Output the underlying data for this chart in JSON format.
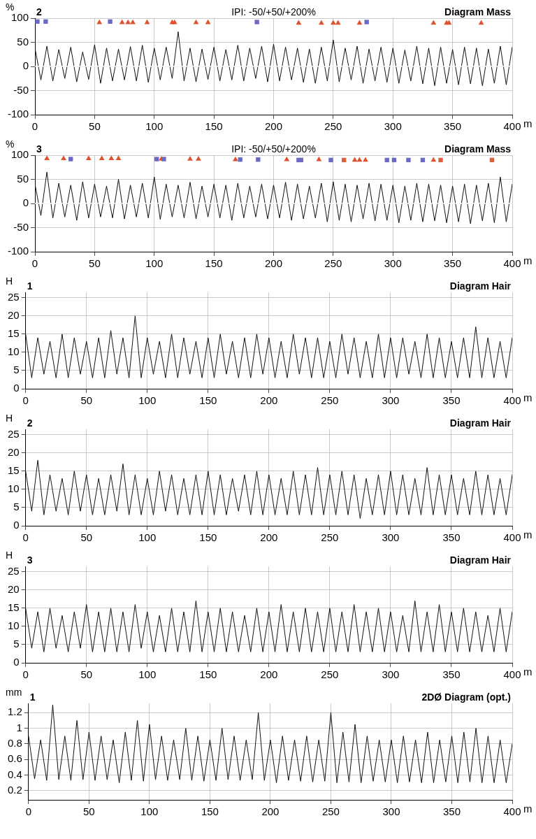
{
  "chart_data": [
    {
      "type": "line",
      "title": "Diagram Mass",
      "ylabel": "%",
      "xlabel": "m",
      "annotations": [
        "2",
        "IPI: -50/+50/+200%"
      ],
      "marker": "none",
      "grid": true,
      "x": [
        0,
        5,
        10,
        15,
        20,
        25,
        30,
        35,
        40,
        45,
        50,
        55,
        60,
        65,
        70,
        75,
        80,
        85,
        90,
        95,
        100,
        105,
        110,
        115,
        120,
        125,
        130,
        135,
        140,
        145,
        150,
        155,
        160,
        165,
        170,
        175,
        180,
        185,
        190,
        195,
        200,
        205,
        210,
        215,
        220,
        225,
        230,
        235,
        240,
        245,
        250,
        255,
        260,
        265,
        270,
        275,
        280,
        285,
        290,
        295,
        300,
        305,
        310,
        315,
        320,
        325,
        330,
        335,
        340,
        345,
        350,
        355,
        360,
        365,
        370,
        375,
        380,
        385,
        390,
        395,
        400
      ],
      "xlim": [
        0,
        400
      ],
      "xticks": [
        0,
        50,
        100,
        150,
        200,
        250,
        300,
        350,
        400
      ],
      "ylim": [
        -100,
        100
      ],
      "yticks": [
        -100,
        -50,
        0,
        50,
        100
      ],
      "ref_lines": [
        {
          "axis": "y",
          "value": 0,
          "color": "#ffffff"
        }
      ],
      "series": [
        {
          "type": "line",
          "color": "#111111",
          "values": [
            38,
            -28,
            42,
            -30,
            35,
            -25,
            40,
            -32,
            30,
            -27,
            45,
            -35,
            38,
            -30,
            36,
            -28,
            41,
            -30,
            44,
            -33,
            38,
            -28,
            40,
            -25,
            72,
            -30,
            38,
            -32,
            36,
            -27,
            40,
            -30,
            35,
            -28,
            44,
            -30,
            38,
            -25,
            42,
            -32,
            46,
            -30,
            40,
            -28,
            38,
            -33,
            36,
            -35,
            40,
            -30,
            55,
            -32,
            38,
            -28,
            42,
            -35,
            36,
            -30,
            40,
            -33,
            38,
            -35,
            34,
            -30,
            42,
            -36,
            38,
            -40,
            40,
            -35,
            35,
            -38,
            40,
            -36,
            38,
            -40,
            36,
            -35,
            42,
            -38,
            40
          ]
        },
        {
          "type": "scatter",
          "marker": "square",
          "color": "#6a6ac4",
          "x": [
            2,
            9,
            63,
            186,
            278
          ],
          "values": [
            93,
            93,
            93,
            92,
            92
          ]
        },
        {
          "type": "scatter",
          "marker": "triangle",
          "color": "#e0522e",
          "x": [
            54,
            73,
            78,
            82,
            94,
            115,
            117,
            135,
            145,
            221,
            240,
            250,
            254,
            272,
            334,
            345,
            347,
            374
          ],
          "values": [
            91,
            91,
            91,
            91,
            91,
            91,
            91,
            91,
            91,
            90,
            90,
            90,
            90,
            90,
            90,
            90,
            90,
            90
          ]
        }
      ]
    },
    {
      "type": "line",
      "title": "Diagram Mass",
      "ylabel": "%",
      "xlabel": "m",
      "annotations": [
        "3",
        "IPI: -50/+50/+200%"
      ],
      "marker": "none",
      "grid": true,
      "x": [
        0,
        5,
        10,
        15,
        20,
        25,
        30,
        35,
        40,
        45,
        50,
        55,
        60,
        65,
        70,
        75,
        80,
        85,
        90,
        95,
        100,
        105,
        110,
        115,
        120,
        125,
        130,
        135,
        140,
        145,
        150,
        155,
        160,
        165,
        170,
        175,
        180,
        185,
        190,
        195,
        200,
        205,
        210,
        215,
        220,
        225,
        230,
        235,
        240,
        245,
        250,
        255,
        260,
        265,
        270,
        275,
        280,
        285,
        290,
        295,
        300,
        305,
        310,
        315,
        320,
        325,
        330,
        335,
        340,
        345,
        350,
        355,
        360,
        365,
        370,
        375,
        380,
        385,
        390,
        395,
        400
      ],
      "xlim": [
        0,
        400
      ],
      "xticks": [
        0,
        50,
        100,
        150,
        200,
        250,
        300,
        350,
        400
      ],
      "ylim": [
        -100,
        100
      ],
      "yticks": [
        -100,
        -50,
        0,
        50,
        100
      ],
      "ref_lines": [
        {
          "axis": "y",
          "value": 0,
          "color": "#ffffff"
        }
      ],
      "series": [
        {
          "type": "line",
          "color": "#111111",
          "values": [
            40,
            -25,
            65,
            -30,
            42,
            -28,
            38,
            -35,
            45,
            -30,
            40,
            -28,
            36,
            -30,
            50,
            -32,
            38,
            -28,
            42,
            -30,
            55,
            -33,
            40,
            -28,
            38,
            -30,
            44,
            -32,
            36,
            -28,
            40,
            -30,
            38,
            -35,
            42,
            -30,
            36,
            -28,
            40,
            -32,
            38,
            -30,
            44,
            -35,
            40,
            -32,
            36,
            -30,
            42,
            -38,
            45,
            -35,
            40,
            -38,
            38,
            -32,
            42,
            -36,
            40,
            -35,
            38,
            -40,
            36,
            -35,
            42,
            -38,
            40,
            -36,
            38,
            -40,
            36,
            -38,
            40,
            -42,
            38,
            -36,
            42,
            -40,
            55,
            -38,
            40
          ]
        },
        {
          "type": "scatter",
          "marker": "square",
          "color": "#6a6ac4",
          "x": [
            30,
            102,
            108,
            172,
            187,
            221,
            223,
            248,
            295,
            301,
            313,
            325
          ],
          "values": [
            92,
            92,
            92,
            91,
            91,
            90,
            90,
            90,
            90,
            90,
            90,
            90
          ]
        },
        {
          "type": "scatter",
          "marker": "square",
          "color": "#d9603b",
          "x": [
            259,
            340,
            383
          ],
          "values": [
            90,
            90,
            90
          ]
        },
        {
          "type": "scatter",
          "marker": "triangle",
          "color": "#e0522e",
          "x": [
            10,
            24,
            45,
            56,
            64,
            70,
            106,
            130,
            137,
            168,
            211,
            238,
            268,
            272,
            277,
            334
          ],
          "values": [
            93,
            93,
            93,
            93,
            93,
            93,
            92,
            92,
            92,
            91,
            91,
            91,
            90,
            90,
            90,
            90
          ]
        }
      ]
    },
    {
      "type": "line",
      "title": "Diagram Hair",
      "ylabel": "H",
      "xlabel": "m",
      "annotations": [
        "1"
      ],
      "marker": "none",
      "grid": true,
      "x": [
        0,
        5,
        10,
        15,
        20,
        25,
        30,
        35,
        40,
        45,
        50,
        55,
        60,
        65,
        70,
        75,
        80,
        85,
        90,
        95,
        100,
        105,
        110,
        115,
        120,
        125,
        130,
        135,
        140,
        145,
        150,
        155,
        160,
        165,
        170,
        175,
        180,
        185,
        190,
        195,
        200,
        205,
        210,
        215,
        220,
        225,
        230,
        235,
        240,
        245,
        250,
        255,
        260,
        265,
        270,
        275,
        280,
        285,
        290,
        295,
        300,
        305,
        310,
        315,
        320,
        325,
        330,
        335,
        340,
        345,
        350,
        355,
        360,
        365,
        370,
        375,
        380,
        385,
        390,
        395,
        400
      ],
      "xlim": [
        0,
        400
      ],
      "xticks": [
        0,
        50,
        100,
        150,
        200,
        250,
        300,
        350,
        400
      ],
      "ylim": [
        0,
        26.5
      ],
      "yticks": [
        0,
        5,
        10,
        15,
        20,
        25
      ],
      "series": [
        {
          "type": "line",
          "color": "#111111",
          "values": [
            15,
            3,
            14,
            4,
            13,
            3,
            15,
            3,
            14,
            4,
            13,
            3,
            14,
            3,
            16,
            4,
            14,
            3,
            20,
            3,
            14,
            4,
            13,
            3,
            15,
            3,
            14,
            4,
            13,
            3,
            14,
            3,
            15,
            4,
            13,
            3,
            14,
            3,
            15,
            4,
            14,
            3,
            13,
            3,
            15,
            4,
            14,
            3,
            14,
            3,
            13,
            3,
            15,
            4,
            14,
            3,
            13,
            3,
            15,
            3,
            14,
            3,
            14,
            4,
            13,
            3,
            15,
            3,
            14,
            3,
            13,
            3,
            14,
            3,
            17,
            3,
            14,
            3,
            13,
            3,
            14
          ]
        }
      ]
    },
    {
      "type": "line",
      "title": "Diagram Hair",
      "ylabel": "H",
      "xlabel": "m",
      "annotations": [
        "2"
      ],
      "marker": "none",
      "grid": true,
      "x": [
        0,
        5,
        10,
        15,
        20,
        25,
        30,
        35,
        40,
        45,
        50,
        55,
        60,
        65,
        70,
        75,
        80,
        85,
        90,
        95,
        100,
        105,
        110,
        115,
        120,
        125,
        130,
        135,
        140,
        145,
        150,
        155,
        160,
        165,
        170,
        175,
        180,
        185,
        190,
        195,
        200,
        205,
        210,
        215,
        220,
        225,
        230,
        235,
        240,
        245,
        250,
        255,
        260,
        265,
        270,
        275,
        280,
        285,
        290,
        295,
        300,
        305,
        310,
        315,
        320,
        325,
        330,
        335,
        340,
        345,
        350,
        355,
        360,
        365,
        370,
        375,
        380,
        385,
        390,
        395,
        400
      ],
      "xlim": [
        0,
        400
      ],
      "xticks": [
        0,
        50,
        100,
        150,
        200,
        250,
        300,
        350,
        400
      ],
      "ylim": [
        0,
        26.5
      ],
      "yticks": [
        0,
        5,
        10,
        15,
        20,
        25
      ],
      "series": [
        {
          "type": "line",
          "color": "#111111",
          "values": [
            15,
            4,
            18,
            3,
            14,
            4,
            13,
            3,
            15,
            4,
            14,
            3,
            13,
            3,
            14,
            4,
            17,
            3,
            14,
            3,
            13,
            3,
            15,
            4,
            14,
            3,
            13,
            3,
            14,
            3,
            15,
            3,
            14,
            3,
            13,
            4,
            14,
            3,
            15,
            3,
            14,
            3,
            13,
            3,
            15,
            3,
            14,
            3,
            16,
            3,
            14,
            3,
            15,
            3,
            14,
            2,
            13,
            3,
            14,
            3,
            15,
            3,
            14,
            3,
            13,
            3,
            16,
            3,
            14,
            3,
            14,
            3,
            13,
            3,
            15,
            3,
            14,
            3,
            13,
            3,
            14
          ]
        }
      ]
    },
    {
      "type": "line",
      "title": "Diagram Hair",
      "ylabel": "H",
      "xlabel": "m",
      "annotations": [
        "3"
      ],
      "marker": "none",
      "grid": true,
      "x": [
        0,
        5,
        10,
        15,
        20,
        25,
        30,
        35,
        40,
        45,
        50,
        55,
        60,
        65,
        70,
        75,
        80,
        85,
        90,
        95,
        100,
        105,
        110,
        115,
        120,
        125,
        130,
        135,
        140,
        145,
        150,
        155,
        160,
        165,
        170,
        175,
        180,
        185,
        190,
        195,
        200,
        205,
        210,
        215,
        220,
        225,
        230,
        235,
        240,
        245,
        250,
        255,
        260,
        265,
        270,
        275,
        280,
        285,
        290,
        295,
        300,
        305,
        310,
        315,
        320,
        325,
        330,
        335,
        340,
        345,
        350,
        355,
        360,
        365,
        370,
        375,
        380,
        385,
        390,
        395,
        400
      ],
      "xlim": [
        0,
        400
      ],
      "xticks": [
        0,
        50,
        100,
        150,
        200,
        250,
        300,
        350,
        400
      ],
      "ylim": [
        0,
        26.5
      ],
      "yticks": [
        0,
        5,
        10,
        15,
        20,
        25
      ],
      "series": [
        {
          "type": "line",
          "color": "#111111",
          "values": [
            15,
            4,
            14,
            3,
            15,
            4,
            13,
            3,
            14,
            4,
            16,
            3,
            14,
            3,
            15,
            3,
            14,
            3,
            16,
            4,
            14,
            3,
            13,
            3,
            15,
            3,
            14,
            3,
            17,
            3,
            14,
            3,
            15,
            3,
            14,
            3,
            13,
            3,
            15,
            3,
            14,
            3,
            16,
            3,
            14,
            3,
            15,
            3,
            14,
            3,
            15,
            3,
            14,
            3,
            16,
            3,
            14,
            3,
            15,
            3,
            14,
            3,
            13,
            3,
            17,
            3,
            14,
            3,
            16,
            3,
            14,
            3,
            15,
            3,
            14,
            3,
            13,
            3,
            15,
            3,
            14
          ]
        }
      ]
    },
    {
      "type": "line",
      "title": "2DØ Diagram (opt.)",
      "ylabel": "mm",
      "xlabel": "m",
      "annotations": [
        "1"
      ],
      "marker": "none",
      "grid": true,
      "x": [
        0,
        5,
        10,
        15,
        20,
        25,
        30,
        35,
        40,
        45,
        50,
        55,
        60,
        65,
        70,
        75,
        80,
        85,
        90,
        95,
        100,
        105,
        110,
        115,
        120,
        125,
        130,
        135,
        140,
        145,
        150,
        155,
        160,
        165,
        170,
        175,
        180,
        185,
        190,
        195,
        200,
        205,
        210,
        215,
        220,
        225,
        230,
        235,
        240,
        245,
        250,
        255,
        260,
        265,
        270,
        275,
        280,
        285,
        290,
        295,
        300,
        305,
        310,
        315,
        320,
        325,
        330,
        335,
        340,
        345,
        350,
        355,
        360,
        365,
        370,
        375,
        380,
        385,
        390,
        395,
        400
      ],
      "xlim": [
        0,
        400
      ],
      "xticks": [
        0,
        50,
        100,
        150,
        200,
        250,
        300,
        350,
        400
      ],
      "ylim": [
        0.08,
        1.32
      ],
      "yticks": [
        0.2,
        0.4,
        0.6,
        0.8,
        1,
        1.2
      ],
      "series": [
        {
          "type": "line",
          "color": "#111111",
          "values": [
            0.9,
            0.35,
            0.85,
            0.33,
            1.3,
            0.34,
            0.9,
            0.33,
            1.1,
            0.34,
            0.95,
            0.33,
            0.9,
            0.34,
            0.85,
            0.3,
            0.95,
            0.33,
            1.1,
            0.32,
            1.05,
            0.34,
            0.9,
            0.33,
            0.85,
            0.34,
            1.0,
            0.33,
            0.9,
            0.32,
            0.85,
            0.33,
            1.0,
            0.34,
            0.9,
            0.33,
            0.85,
            0.34,
            1.2,
            0.33,
            0.85,
            0.3,
            0.9,
            0.33,
            0.85,
            0.32,
            0.9,
            0.31,
            0.85,
            0.32,
            1.2,
            0.3,
            0.95,
            0.31,
            1.05,
            0.3,
            0.9,
            0.32,
            0.85,
            0.31,
            0.85,
            0.3,
            0.9,
            0.31,
            0.85,
            0.3,
            0.95,
            0.3,
            0.85,
            0.31,
            0.9,
            0.3,
            0.95,
            0.31,
            1.0,
            0.3,
            0.9,
            0.3,
            0.85,
            0.3,
            0.8
          ]
        }
      ]
    }
  ]
}
